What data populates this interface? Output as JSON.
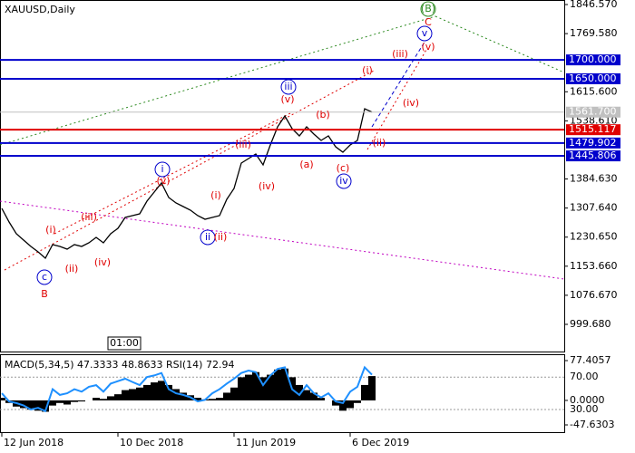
{
  "chart_data": [
    {
      "type": "line",
      "title": "XAUUSD,Daily",
      "color": "#000000",
      "categories": [
        "12 Jun 2018",
        null,
        null,
        null,
        null,
        null,
        null,
        null,
        null,
        null,
        null,
        null,
        null,
        null,
        null,
        null,
        "10 Dec 2018",
        null,
        null,
        null,
        null,
        null,
        null,
        null,
        null,
        null,
        null,
        null,
        null,
        null,
        null,
        null,
        "11 Jun 2019",
        null,
        null,
        null,
        null,
        null,
        null,
        null,
        null,
        null,
        null,
        null,
        null,
        null,
        null,
        null,
        "6 Dec 2019",
        null,
        null,
        null
      ],
      "values": [
        1306.8,
        1270.8,
        1239.6,
        1222.9,
        1206.1,
        1191.7,
        1174.9,
        1210.9,
        1206.1,
        1198.9,
        1210.9,
        1206.1,
        1215.7,
        1230.1,
        1215.7,
        1239.6,
        1254.0,
        1282.8,
        1287.6,
        1292.4,
        1326.0,
        1350.0,
        1374.0,
        1335.6,
        1321.2,
        1311.6,
        1302.0,
        1287.6,
        1278.0,
        1282.8,
        1287.6,
        1330.8,
        1359.6,
        1426.8,
        1438.8,
        1450.8,
        1422.0,
        1474.8,
        1522.7,
        1551.5,
        1517.9,
        1498.7,
        1522.7,
        1503.5,
        1486.7,
        1498.7,
        1470.0,
        1455.6,
        1474.8,
        1486.7,
        1570.7,
        1561.7
      ],
      "ylim": [
        927.7,
        1858.6
      ],
      "yticks": [
        {
          "value": 1846.57,
          "label": "1846.570"
        },
        {
          "value": 1769.58,
          "label": "1769.580"
        },
        {
          "value": 1615.6,
          "label": "1615.600"
        },
        {
          "value": 1538.61,
          "label": "1538.610"
        },
        {
          "value": 1384.63,
          "label": "1384.630"
        },
        {
          "value": 1307.64,
          "label": "1307.640"
        },
        {
          "value": 1230.65,
          "label": "1230.650"
        },
        {
          "value": 1153.66,
          "label": "1153.660"
        },
        {
          "value": 1076.67,
          "label": "1076.670"
        },
        {
          "value": 999.68,
          "label": "999.680"
        }
      ],
      "levels": [
        {
          "value": 1700,
          "label": "1700.000",
          "color": "#0000cc"
        },
        {
          "value": 1650,
          "label": "1650.000",
          "color": "#0000cc"
        },
        {
          "value": 1561.7,
          "label": "1561.700",
          "color": "#c0c0c0"
        },
        {
          "value": 1515.117,
          "label": "1515.117",
          "color": "#e00000"
        },
        {
          "value": 1479.902,
          "label": "1479.902",
          "color": "#0000cc"
        },
        {
          "value": 1445.806,
          "label": "1445.806",
          "color": "#0000cc"
        }
      ],
      "annotations": [
        {
          "text": "(B)",
          "color": "#2e8b22",
          "circled": true
        },
        {
          "text": "C",
          "color": "#e00000"
        },
        {
          "text": "v",
          "color": "#0000cc",
          "circled": true
        },
        {
          "text": "(v)",
          "color": "#e00000"
        },
        {
          "text": "(iii)",
          "color": "#e00000"
        },
        {
          "text": "(i)",
          "color": "#e00000"
        },
        {
          "text": "(iv)",
          "color": "#e00000"
        },
        {
          "text": "(ii)",
          "color": "#e00000"
        },
        {
          "text": "iii",
          "color": "#0000cc",
          "circled": true
        },
        {
          "text": "(v)",
          "color": "#e00000"
        },
        {
          "text": "(b)",
          "color": "#e00000"
        },
        {
          "text": "(a)",
          "color": "#e00000"
        },
        {
          "text": "(c)",
          "color": "#e00000"
        },
        {
          "text": "iv",
          "color": "#0000cc",
          "circled": true
        },
        {
          "text": "(iii)",
          "color": "#e00000"
        },
        {
          "text": "(iv)",
          "color": "#e00000"
        },
        {
          "text": "i",
          "color": "#0000cc",
          "circled": true
        },
        {
          "text": "(v)",
          "color": "#e00000"
        },
        {
          "text": "(i)",
          "color": "#e00000"
        },
        {
          "text": "ii",
          "color": "#0000cc",
          "circled": true
        },
        {
          "text": "(ii)",
          "color": "#e00000"
        },
        {
          "text": "(i)",
          "color": "#e00000"
        },
        {
          "text": "(iii)",
          "color": "#e00000"
        },
        {
          "text": "(ii)",
          "color": "#e00000"
        },
        {
          "text": "(iv)",
          "color": "#e00000"
        },
        {
          "text": "c",
          "color": "#0000cc",
          "circled": true
        },
        {
          "text": "B",
          "color": "#e00000"
        },
        {
          "text": "01:00",
          "color": "#000000",
          "boxed": true
        }
      ]
    },
    {
      "type": "bar",
      "title": "MACD(5,34,5) 47.3333 48.8633 RSI(14) 72.94",
      "ylim": [
        -63.5,
        88
      ],
      "y2lim": [
        1,
        97
      ],
      "yticks": [
        {
          "value": 77.4057,
          "label": "77.4057"
        },
        {
          "value": 0,
          "label": "0.0000"
        },
        {
          "value": -47.6303,
          "label": "-47.6303"
        }
      ],
      "y2ticks": [
        {
          "value": 70,
          "label": "70.00"
        },
        {
          "value": 30,
          "label": "30.00"
        }
      ],
      "series": [
        {
          "color": "#000000",
          "values": [
            5,
            -5,
            -12,
            -15,
            -18,
            -20,
            -22,
            -10,
            -5,
            -8,
            -3,
            -2,
            0,
            5,
            3,
            8,
            12,
            20,
            22,
            25,
            30,
            35,
            38,
            30,
            22,
            15,
            10,
            5,
            2,
            3,
            5,
            15,
            25,
            45,
            50,
            55,
            45,
            50,
            60,
            62,
            45,
            30,
            20,
            15,
            5,
            0,
            -10,
            -20,
            -15,
            -5,
            30,
            47.3
          ]
        },
        {
          "color": "#1e90ff",
          "axis": "y2",
          "type": "line",
          "values": [
            50,
            40,
            38,
            35,
            30,
            32,
            28,
            55,
            48,
            50,
            55,
            52,
            58,
            60,
            52,
            62,
            65,
            68,
            64,
            60,
            70,
            72,
            75,
            55,
            50,
            48,
            45,
            40,
            42,
            50,
            55,
            62,
            68,
            75,
            78,
            76,
            60,
            72,
            80,
            82,
            55,
            48,
            60,
            50,
            45,
            50,
            40,
            38,
            52,
            58,
            82,
            72.9
          ]
        }
      ]
    }
  ]
}
